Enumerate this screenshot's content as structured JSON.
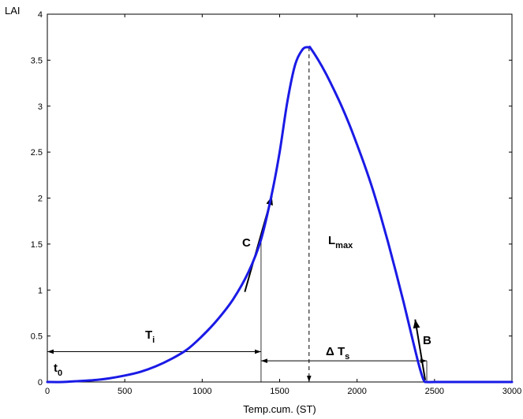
{
  "chart_data": {
    "type": "line",
    "title": "",
    "xlabel": "Temp.cum. (ST)",
    "ylabel": "LAI",
    "xlim": [
      0,
      3000
    ],
    "ylim": [
      0,
      4
    ],
    "xticks": [
      0,
      500,
      1000,
      1500,
      2000,
      2500,
      3000
    ],
    "yticks": [
      0,
      0.5,
      1,
      1.5,
      2,
      2.5,
      3,
      3.5,
      4
    ],
    "xtick_labels": [
      "0",
      "500",
      "1000",
      "1500",
      "2000",
      "2500",
      "3000"
    ],
    "ytick_labels": [
      "0",
      "0.5",
      "1",
      "1.5",
      "2",
      "2.5",
      "3",
      "3.5",
      "4"
    ],
    "grid": false,
    "series": [
      {
        "color": "#1a1ae6",
        "x": [
          0,
          100,
          200,
          300,
          400,
          500,
          600,
          700,
          800,
          900,
          1000,
          1100,
          1200,
          1300,
          1380,
          1450,
          1500,
          1550,
          1600,
          1650,
          1690,
          1700,
          1750,
          1800,
          1850,
          1900,
          1950,
          2000,
          2050,
          2100,
          2150,
          2200,
          2250,
          2300,
          2350,
          2400,
          2430,
          2450,
          2500,
          2600,
          2700,
          2800,
          2900,
          3000
        ],
        "y": [
          0,
          0,
          0.01,
          0.02,
          0.04,
          0.07,
          0.11,
          0.17,
          0.25,
          0.35,
          0.5,
          0.68,
          0.9,
          1.2,
          1.55,
          2.05,
          2.5,
          3.05,
          3.45,
          3.62,
          3.64,
          3.63,
          3.5,
          3.35,
          3.18,
          3.0,
          2.8,
          2.58,
          2.35,
          2.1,
          1.82,
          1.52,
          1.2,
          0.87,
          0.52,
          0.18,
          0.02,
          0,
          0,
          0,
          0,
          0,
          0,
          0
        ]
      }
    ],
    "annotations": {
      "lmax": "L",
      "lmax_sub": "max",
      "c": "C",
      "b": "B",
      "ti": "T",
      "ti_sub": "i",
      "ts": "Δ T",
      "ts_sub": "s",
      "t0": "t",
      "t0_sub": "0"
    },
    "marks": {
      "lmax_x": 1690,
      "lmax_y": 3.64,
      "ti_start": 0,
      "ti_end": 1380,
      "ti_y": 0.33,
      "ts_start": 1380,
      "ts_end": 2450,
      "ts_y": 0.23,
      "c_tangent": [
        [
          1275,
          0.98
        ],
        [
          1450,
          2.02
        ]
      ],
      "c_vline_x": 1380,
      "c_vline_top": 1.55,
      "b_tangent": [
        [
          2440,
          0.02
        ],
        [
          2375,
          0.68
        ]
      ],
      "b_vline_x": 2450,
      "b_vline_top": 0.23
    }
  }
}
